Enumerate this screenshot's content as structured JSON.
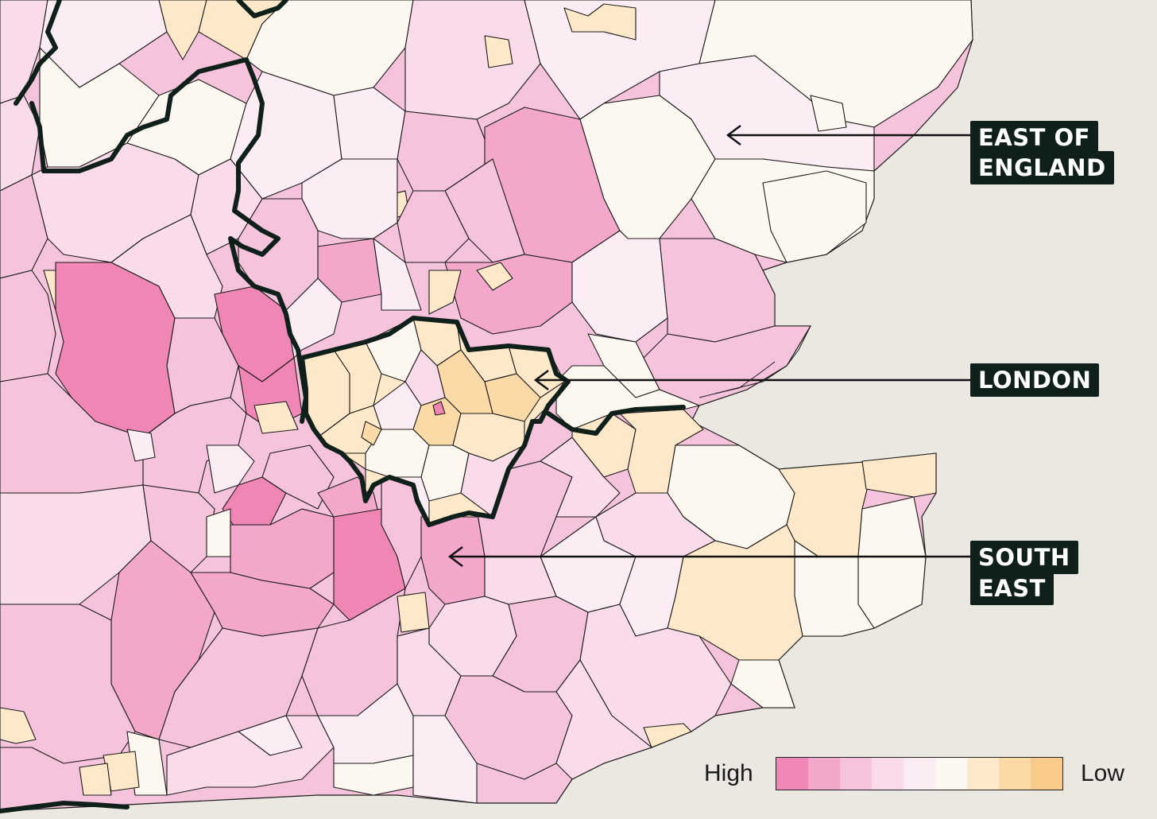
{
  "labels": {
    "east": [
      "EAST OF",
      "ENGLAND"
    ],
    "london": [
      "LONDON"
    ],
    "south_east": [
      "SOUTH",
      "EAST"
    ]
  },
  "legend": {
    "high_label": "High",
    "low_label": "Low",
    "scale_colors": [
      "#ef86b6",
      "#f3a7cb",
      "#f6c3dc",
      "#f9dbe9",
      "#fcedf4",
      "#fdf8ef",
      "#fde9c9",
      "#fbdaa8",
      "#f9cb8b"
    ]
  },
  "colors": {
    "sea": "#ebe8e2",
    "boundary": "#0f201b",
    "district_line": "#1a1a1a"
  }
}
